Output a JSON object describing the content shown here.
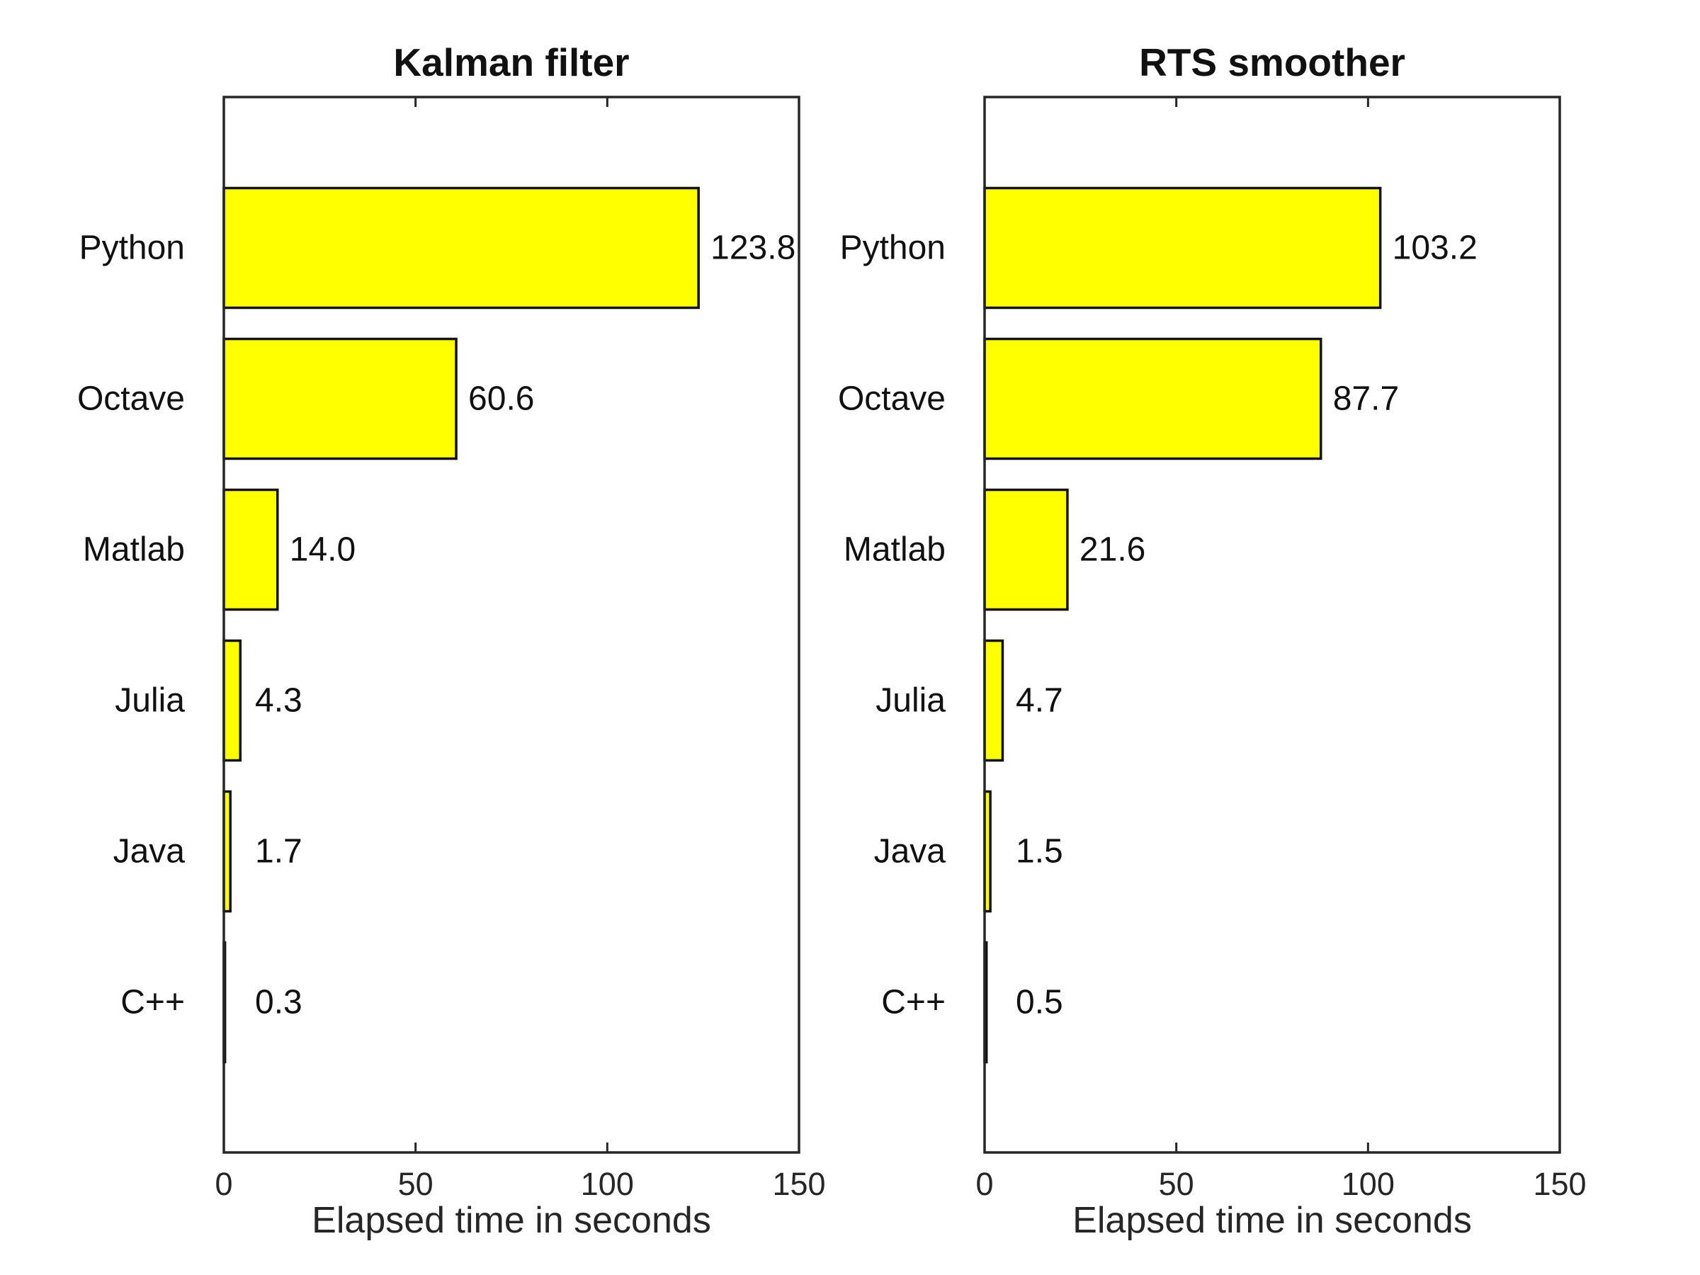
{
  "chart_data": [
    {
      "type": "bar",
      "orientation": "horizontal",
      "title": "Kalman filter",
      "xlabel": "Elapsed time in seconds",
      "ylabel": "",
      "xlim": [
        0,
        150
      ],
      "xticks": [
        "0",
        "50",
        "100",
        "150"
      ],
      "categories": [
        "Python",
        "Octave",
        "Matlab",
        "Julia",
        "Java",
        "C++"
      ],
      "values": [
        123.8,
        60.6,
        14.0,
        4.3,
        1.7,
        0.3
      ],
      "value_labels": [
        "123.8",
        "60.6",
        "14.0",
        "4.3",
        "1.7",
        "0.3"
      ],
      "bar_color": "#ffff00",
      "edge_color": "#111111",
      "grid": false
    },
    {
      "type": "bar",
      "orientation": "horizontal",
      "title": "RTS smoother",
      "xlabel": "Elapsed time in seconds",
      "ylabel": "",
      "xlim": [
        0,
        150
      ],
      "xticks": [
        "0",
        "50",
        "100",
        "150"
      ],
      "categories": [
        "Python",
        "Octave",
        "Matlab",
        "Julia",
        "Java",
        "C++"
      ],
      "values": [
        103.2,
        87.7,
        21.6,
        4.7,
        1.5,
        0.5
      ],
      "value_labels": [
        "103.2",
        "87.7",
        "21.6",
        "4.7",
        "1.5",
        "0.5"
      ],
      "bar_color": "#ffff00",
      "edge_color": "#111111",
      "grid": false
    }
  ]
}
